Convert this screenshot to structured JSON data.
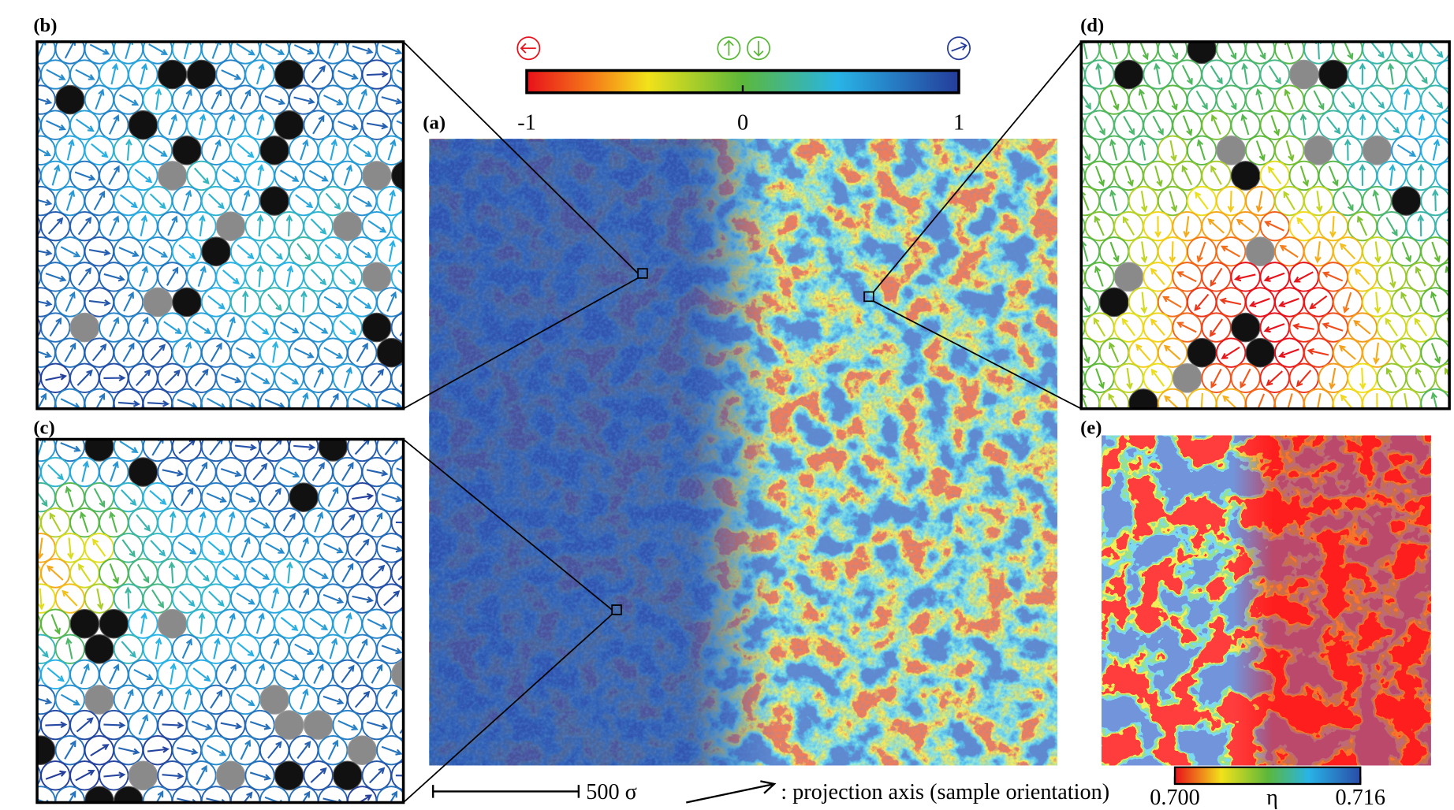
{
  "panels": {
    "a": {
      "label": "(a)"
    },
    "b": {
      "label": "(b)"
    },
    "c": {
      "label": "(c)"
    },
    "d": {
      "label": "(d)"
    },
    "e": {
      "label": "(e)"
    }
  },
  "colorbar": {
    "lim": [
      -1,
      1
    ],
    "ticks": [
      -1,
      0,
      1
    ]
  },
  "density_colorbar": {
    "lim": [
      0.7,
      0.716
    ],
    "ticks": [
      {
        "value": 0.7,
        "label": "0.700"
      },
      0.716
    ],
    "symbol": "η"
  },
  "scale_bar": {
    "label": "500 σ"
  },
  "legend": {
    "arrow_label": ": projection axis (sample orientation)"
  }
}
